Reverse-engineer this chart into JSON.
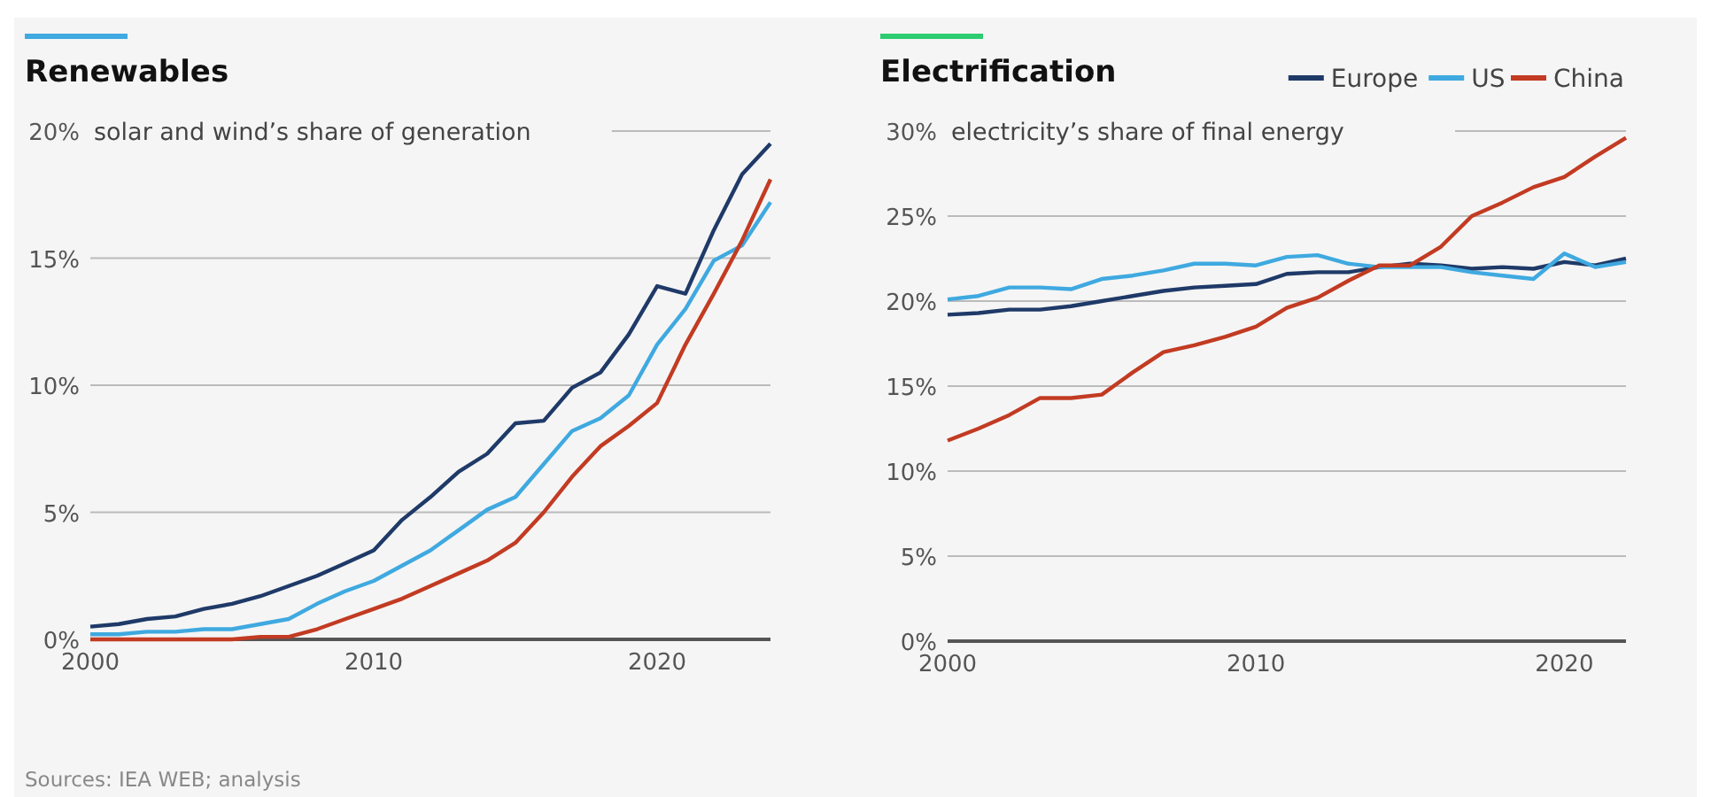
{
  "chart_data": [
    {
      "type": "line",
      "title": "Renewables",
      "ylabel": "solar and wind’s share of generation",
      "x": [
        2000,
        2001,
        2002,
        2003,
        2004,
        2005,
        2006,
        2007,
        2008,
        2009,
        2010,
        2011,
        2012,
        2013,
        2014,
        2015,
        2016,
        2017,
        2018,
        2019,
        2020,
        2021,
        2022,
        2023,
        2024
      ],
      "series": [
        {
          "color": "#1f3a68",
          "values": [
            0.5,
            0.6,
            0.8,
            0.9,
            1.2,
            1.4,
            1.7,
            2.1,
            2.5,
            3.0,
            3.5,
            4.7,
            5.6,
            6.6,
            7.3,
            8.5,
            8.6,
            9.9,
            10.5,
            12.0,
            13.9,
            13.6,
            16.1,
            18.3,
            19.5
          ]
        },
        {
          "color": "#3fa9e0",
          "values": [
            0.2,
            0.2,
            0.3,
            0.3,
            0.4,
            0.4,
            0.6,
            0.8,
            1.4,
            1.9,
            2.3,
            2.9,
            3.5,
            4.3,
            5.1,
            5.6,
            6.9,
            8.2,
            8.7,
            9.6,
            11.6,
            13.0,
            14.9,
            15.5,
            17.2
          ]
        },
        {
          "color": "#c23b22",
          "values": [
            0.0,
            0.0,
            0.0,
            0.0,
            0.0,
            0.0,
            0.1,
            0.1,
            0.4,
            0.8,
            1.2,
            1.6,
            2.1,
            2.6,
            3.1,
            3.8,
            5.0,
            6.4,
            7.6,
            8.4,
            9.3,
            11.6,
            13.6,
            15.7,
            18.1
          ]
        }
      ],
      "xlim": [
        2000,
        2024
      ],
      "xticks": [
        2000,
        2010,
        2020
      ],
      "ylim": [
        0,
        20
      ],
      "yticks": [
        {
          "value": 0,
          "label": "0%"
        },
        {
          "value": 5,
          "label": "5%"
        },
        {
          "value": 10,
          "label": "10%"
        },
        {
          "value": 15,
          "label": "15%"
        },
        {
          "value": 20,
          "label": "20%"
        }
      ],
      "grid": "y",
      "annotations": [
        "Sources: IEA WEB; analysis"
      ]
    },
    {
      "type": "line",
      "title": "Electrification",
      "ylabel": "electricity’s share of final energy",
      "x": [
        2000,
        2001,
        2002,
        2003,
        2004,
        2005,
        2006,
        2007,
        2008,
        2009,
        2010,
        2011,
        2012,
        2013,
        2014,
        2015,
        2016,
        2017,
        2018,
        2019,
        2020,
        2021,
        2022
      ],
      "series": [
        {
          "name": "Europe",
          "color": "#1f3a68",
          "values": [
            19.2,
            19.3,
            19.5,
            19.5,
            19.7,
            20.0,
            20.3,
            20.6,
            20.8,
            20.9,
            21.0,
            21.6,
            21.7,
            21.7,
            22.0,
            22.2,
            22.1,
            21.9,
            22.0,
            21.9,
            22.3,
            22.1,
            22.5
          ]
        },
        {
          "name": "US",
          "color": "#3fa9e0",
          "values": [
            20.1,
            20.3,
            20.8,
            20.8,
            20.7,
            21.3,
            21.5,
            21.8,
            22.2,
            22.2,
            22.1,
            22.6,
            22.7,
            22.2,
            22.0,
            22.0,
            22.0,
            21.7,
            21.5,
            21.3,
            22.8,
            22.0,
            22.3
          ]
        },
        {
          "name": "China",
          "color": "#c23b22",
          "values": [
            11.8,
            12.5,
            13.3,
            14.3,
            14.3,
            14.5,
            15.8,
            17.0,
            17.4,
            17.9,
            18.5,
            19.6,
            20.2,
            21.2,
            22.1,
            22.1,
            23.2,
            25.0,
            25.8,
            26.7,
            27.3,
            28.5,
            29.6
          ]
        }
      ],
      "xlim": [
        2000,
        2022
      ],
      "xticks": [
        2000,
        2010,
        2020
      ],
      "ylim": [
        0,
        30
      ],
      "yticks": [
        {
          "value": 0,
          "label": "0%"
        },
        {
          "value": 5,
          "label": "5%"
        },
        {
          "value": 10,
          "label": "10%"
        },
        {
          "value": 15,
          "label": "15%"
        },
        {
          "value": 20,
          "label": "20%"
        },
        {
          "value": 25,
          "label": "25%"
        },
        {
          "value": 30,
          "label": "30%"
        }
      ],
      "grid": "y",
      "legend": "top right"
    }
  ]
}
